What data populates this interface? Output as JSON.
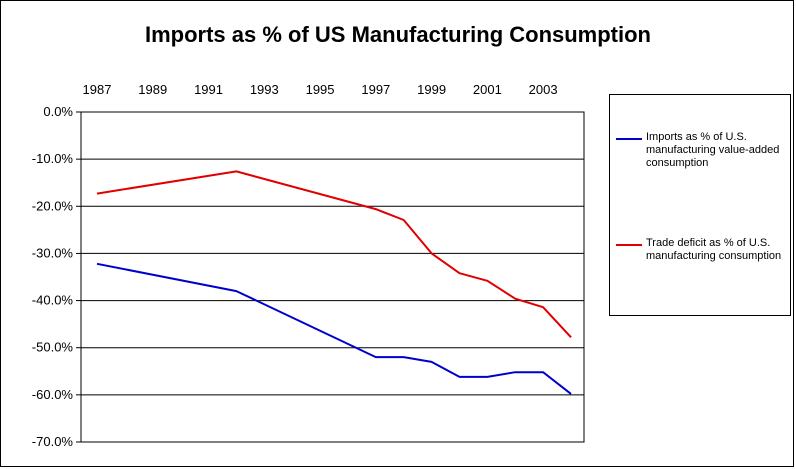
{
  "chart_data": {
    "type": "line",
    "title": "Imports as % of US Manufacturing Consumption",
    "x_tick_labels": [
      "1987",
      "1989",
      "1991",
      "1993",
      "1995",
      "1997",
      "1999",
      "2001",
      "2003"
    ],
    "x_ticks": [
      1987,
      1989,
      1991,
      1993,
      1995,
      1997,
      1999,
      2001,
      2003
    ],
    "xlim": [
      1987,
      2004
    ],
    "x_axis_position": "top",
    "ylim": [
      -70,
      0
    ],
    "y_ticks": [
      0,
      -10,
      -20,
      -30,
      -40,
      -50,
      -60,
      -70
    ],
    "y_tick_labels": [
      "0.0%",
      "-10.0%",
      "-20.0%",
      "-30.0%",
      "-40.0%",
      "-50.0%",
      "-60.0%",
      "-70.0%"
    ],
    "grid": true,
    "legend_position": "right",
    "series": [
      {
        "name": "Imports as % of U.S. manufacturing value-added consumption",
        "color": "#0000cc",
        "x": [
          1987,
          1992,
          1997,
          1998,
          1999,
          2000,
          2001,
          2002,
          2003,
          2004
        ],
        "y": [
          -32.2,
          -38.0,
          -52.0,
          -52.0,
          -53.0,
          -56.2,
          -56.2,
          -55.2,
          -55.2,
          -59.8
        ]
      },
      {
        "name": "Trade deficit as % of U.S. manufacturing consumption",
        "color": "#e00000",
        "x": [
          1987,
          1992,
          1997,
          1998,
          1999,
          2000,
          2001,
          2002,
          2003,
          2004
        ],
        "y": [
          -17.3,
          -12.6,
          -20.6,
          -22.9,
          -30.0,
          -34.2,
          -35.8,
          -39.6,
          -41.4,
          -47.8
        ]
      }
    ]
  }
}
